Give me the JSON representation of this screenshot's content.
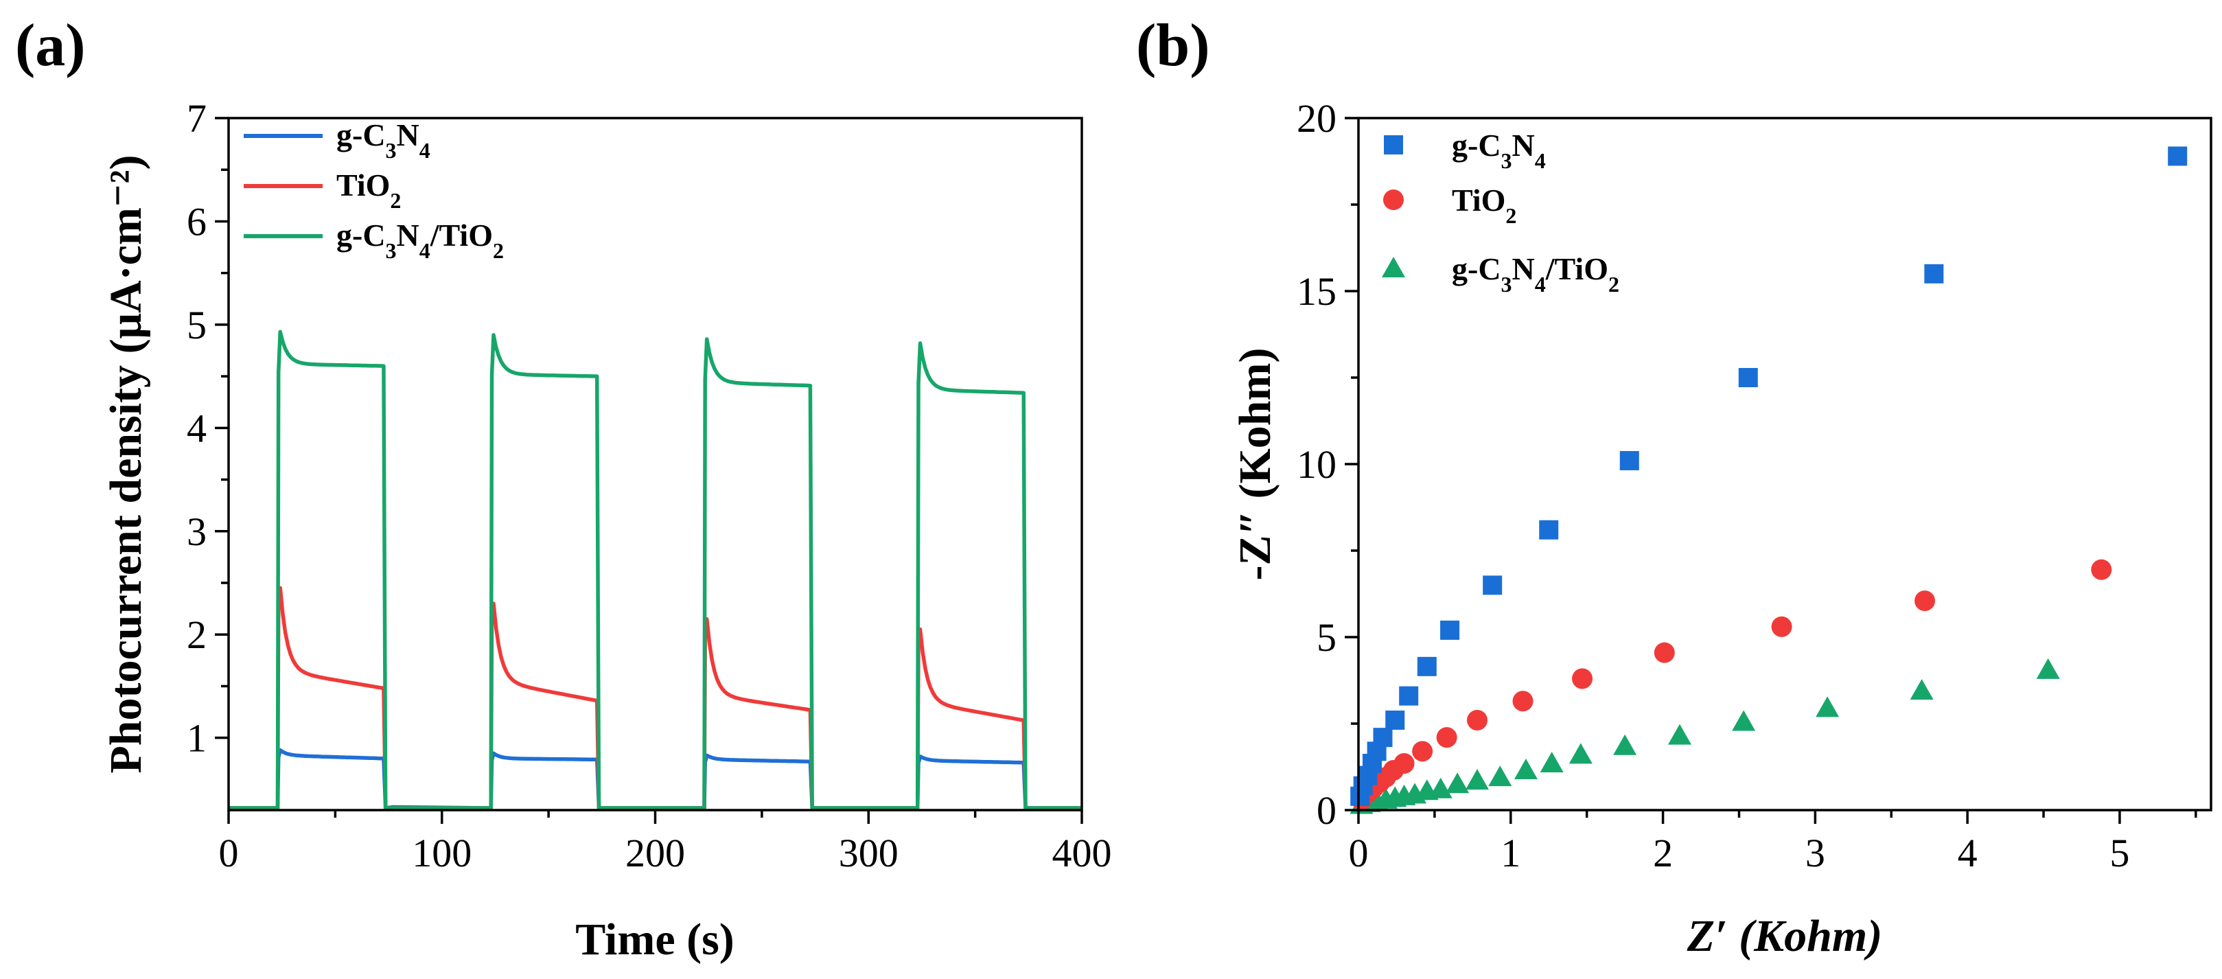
{
  "chart_data": [
    {
      "panel_label": "(a)",
      "type": "line",
      "title": "",
      "xlabel": "Time (s)",
      "ylabel": "Photocurrent density (μA·cm⁻²)",
      "xlim": [
        0,
        400
      ],
      "ylim": [
        0.3,
        7
      ],
      "xticks": [
        "0",
        "100",
        "200",
        "300",
        "400"
      ],
      "yticks": [
        "1",
        "2",
        "3",
        "4",
        "5",
        "6",
        "7"
      ],
      "legend": {
        "position": "top-left",
        "items": [
          "g-C3N4",
          "TiO2",
          "g-C3N4/TiO2"
        ]
      },
      "light_on_off_cycles_s": [
        [
          23,
          73
        ],
        [
          123,
          173
        ],
        [
          223,
          273
        ],
        [
          323,
          373
        ]
      ],
      "series": [
        {
          "name": "g-C3N4",
          "color": "#1f6fd6",
          "baseline": 0.32,
          "cycles": [
            {
              "peak": 0.88,
              "start": 0.83,
              "end": 0.8
            },
            {
              "peak": 0.85,
              "start": 0.8,
              "end": 0.79
            },
            {
              "peak": 0.83,
              "start": 0.79,
              "end": 0.77
            },
            {
              "peak": 0.82,
              "start": 0.78,
              "end": 0.76
            }
          ]
        },
        {
          "name": "TiO2",
          "color": "#f03a3a",
          "baseline": 0.32,
          "cycles": [
            {
              "peak": 2.45,
              "start": 1.65,
              "end": 1.48
            },
            {
              "peak": 2.3,
              "start": 1.55,
              "end": 1.36
            },
            {
              "peak": 2.15,
              "start": 1.42,
              "end": 1.27
            },
            {
              "peak": 2.05,
              "start": 1.35,
              "end": 1.17
            }
          ]
        },
        {
          "name": "g-C3N4/TiO2",
          "color": "#17a66a",
          "baseline": 0.32,
          "cycles": [
            {
              "peak": 4.93,
              "start": 4.62,
              "end": 4.6
            },
            {
              "peak": 4.9,
              "start": 4.52,
              "end": 4.5
            },
            {
              "peak": 4.86,
              "start": 4.44,
              "end": 4.41
            },
            {
              "peak": 4.82,
              "start": 4.37,
              "end": 4.34
            }
          ]
        }
      ]
    },
    {
      "panel_label": "(b)",
      "type": "scatter",
      "title": "",
      "xlabel": "Z′ (Kohm)",
      "ylabel": "-Z″ (Kohm)",
      "xlim": [
        0,
        5.6
      ],
      "ylim": [
        0,
        20
      ],
      "xticks": [
        "0",
        "1",
        "2",
        "3",
        "4",
        "5"
      ],
      "yticks": [
        "0",
        "5",
        "10",
        "15",
        "20"
      ],
      "legend": {
        "position": "top-left",
        "items": [
          "g-C3N4",
          "TiO2",
          "g-C3N4/TiO2"
        ]
      },
      "series": [
        {
          "name": "g-C3N4",
          "marker": "square",
          "color": "#1a6fd6",
          "points": [
            [
              0.01,
              0.4
            ],
            [
              0.03,
              0.7
            ],
            [
              0.06,
              1.0
            ],
            [
              0.09,
              1.35
            ],
            [
              0.12,
              1.7
            ],
            [
              0.16,
              2.1
            ],
            [
              0.24,
              2.6
            ],
            [
              0.33,
              3.3
            ],
            [
              0.45,
              4.15
            ],
            [
              0.6,
              5.2
            ],
            [
              0.88,
              6.5
            ],
            [
              1.25,
              8.1
            ],
            [
              1.78,
              10.1
            ],
            [
              2.56,
              12.5
            ],
            [
              3.78,
              15.5
            ],
            [
              5.38,
              18.9
            ]
          ]
        },
        {
          "name": "TiO2",
          "marker": "circle",
          "color": "#f03a3a",
          "points": [
            [
              0.02,
              0.3
            ],
            [
              0.06,
              0.5
            ],
            [
              0.1,
              0.65
            ],
            [
              0.14,
              0.8
            ],
            [
              0.18,
              0.95
            ],
            [
              0.23,
              1.15
            ],
            [
              0.3,
              1.35
            ],
            [
              0.42,
              1.7
            ],
            [
              0.58,
              2.1
            ],
            [
              0.78,
              2.6
            ],
            [
              1.08,
              3.15
            ],
            [
              1.47,
              3.8
            ],
            [
              2.01,
              4.55
            ],
            [
              2.78,
              5.3
            ],
            [
              3.72,
              6.05
            ],
            [
              4.88,
              6.95
            ]
          ]
        },
        {
          "name": "g-C3N4/TiO2",
          "marker": "triangle",
          "color": "#17a66a",
          "points": [
            [
              0.02,
              0.15
            ],
            [
              0.07,
              0.2
            ],
            [
              0.12,
              0.25
            ],
            [
              0.18,
              0.3
            ],
            [
              0.24,
              0.35
            ],
            [
              0.3,
              0.4
            ],
            [
              0.37,
              0.45
            ],
            [
              0.45,
              0.55
            ],
            [
              0.54,
              0.6
            ],
            [
              0.65,
              0.75
            ],
            [
              0.78,
              0.85
            ],
            [
              0.93,
              0.95
            ],
            [
              1.1,
              1.15
            ],
            [
              1.27,
              1.35
            ],
            [
              1.46,
              1.6
            ],
            [
              1.75,
              1.85
            ],
            [
              2.11,
              2.15
            ],
            [
              2.53,
              2.55
            ],
            [
              3.08,
              2.95
            ],
            [
              3.7,
              3.45
            ],
            [
              4.53,
              4.05
            ]
          ]
        }
      ]
    }
  ]
}
